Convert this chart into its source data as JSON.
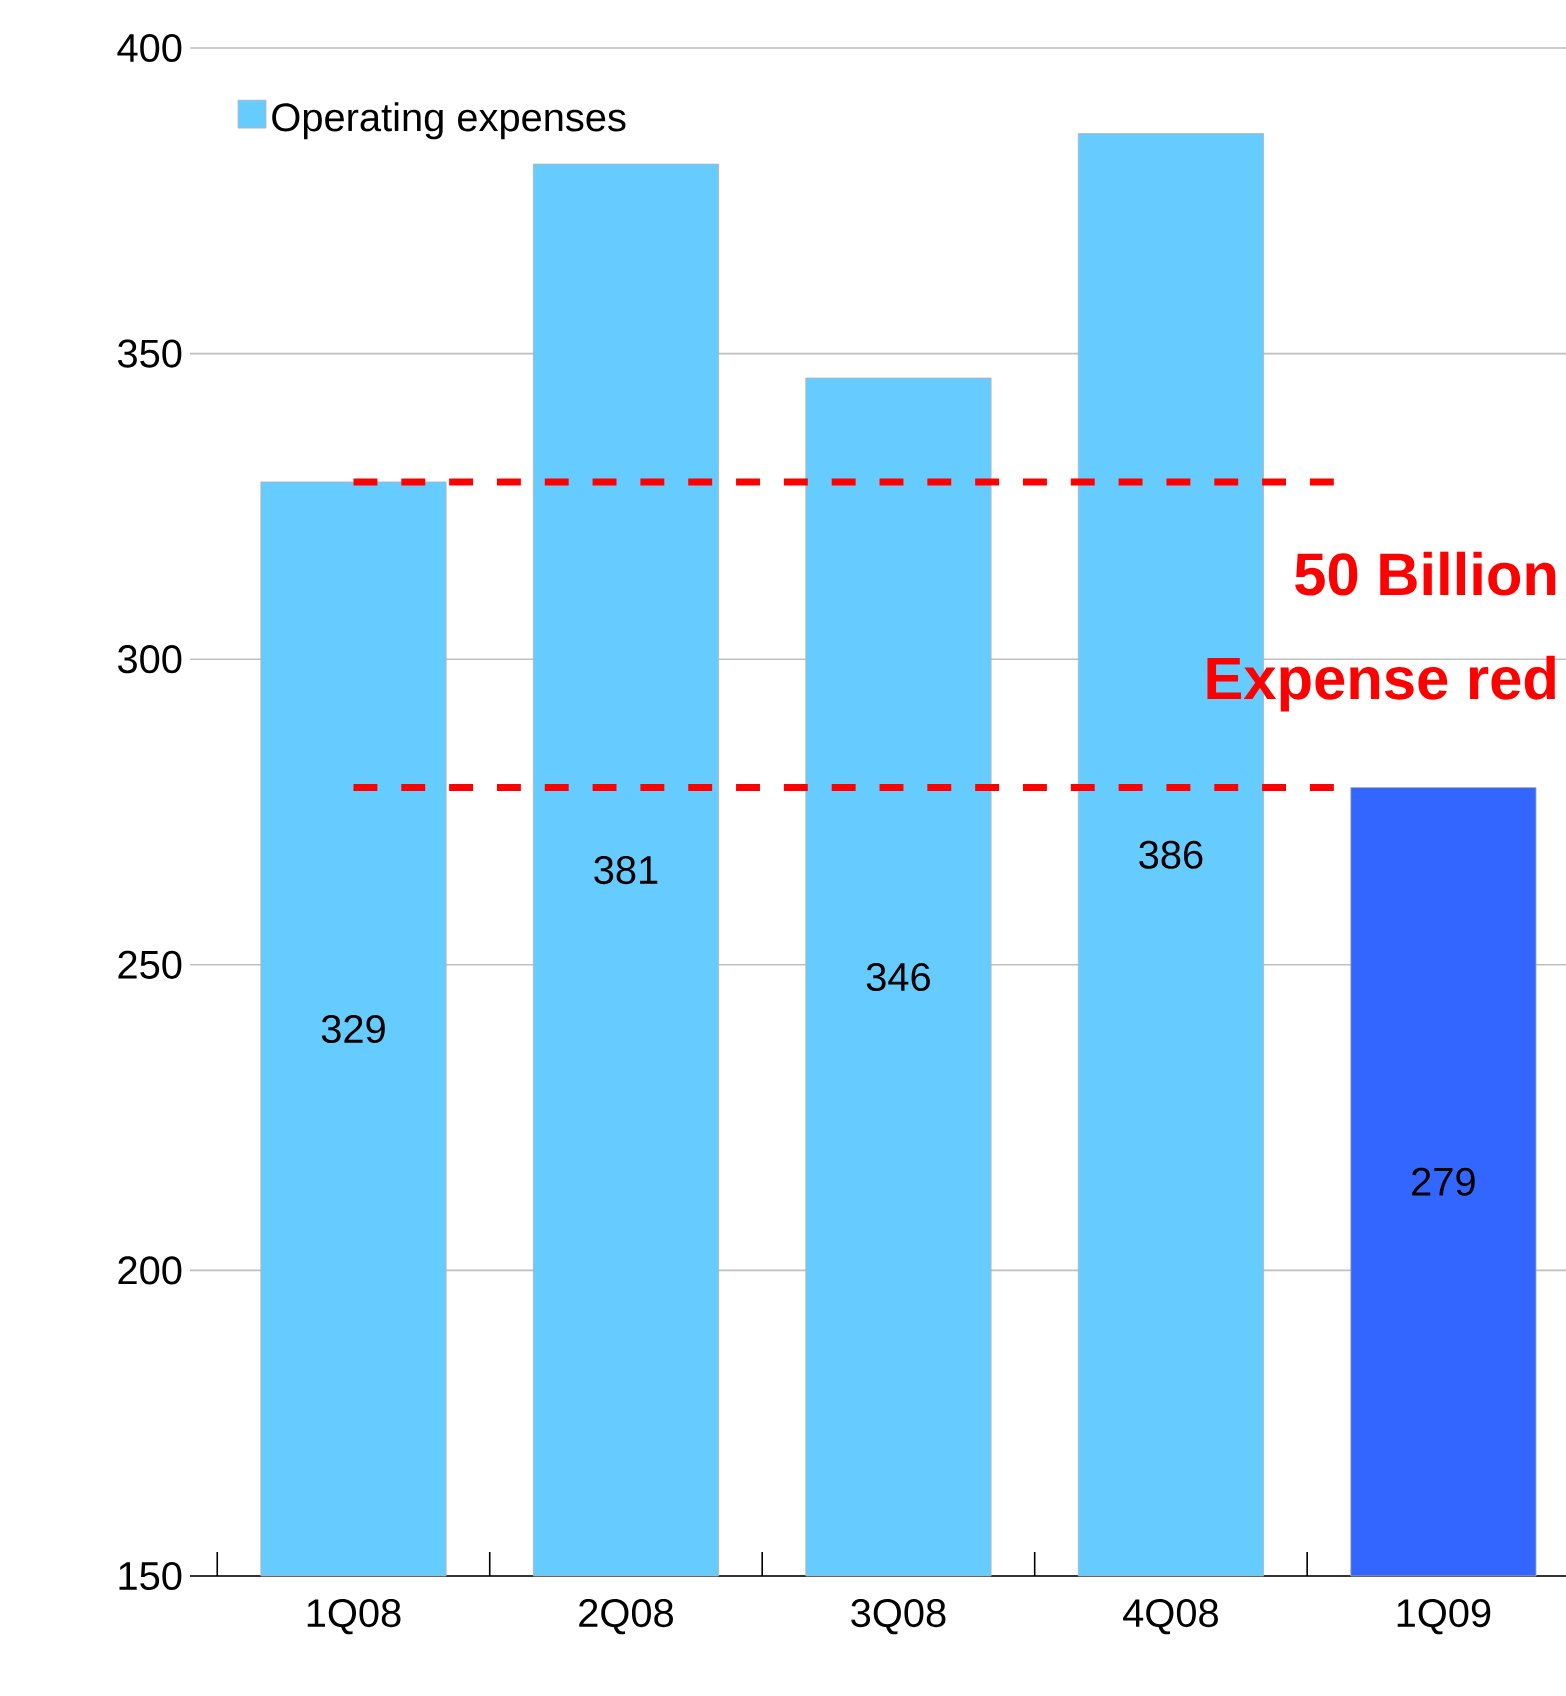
{
  "chart_data": {
    "type": "bar",
    "categories": [
      "1Q08",
      "2Q08",
      "3Q08",
      "4Q08",
      "1Q09"
    ],
    "series": [
      {
        "name": "Operating expenses",
        "color": "#66ccff",
        "colors": [
          "#66ccff",
          "#66ccff",
          "#66ccff",
          "#66ccff",
          "#3366ff"
        ],
        "values": [
          329,
          381,
          346,
          386,
          279
        ]
      }
    ],
    "ylim": [
      150,
      400
    ],
    "yticks": [
      150,
      200,
      250,
      300,
      350,
      400
    ],
    "grid": "y",
    "legend": "top left",
    "data_labels": true,
    "ref_lines": [
      {
        "axis": "y",
        "value": 329,
        "color": "#ff0000",
        "line_style": "dashed"
      },
      {
        "axis": "y",
        "value": 279,
        "color": "#ff0000",
        "line_style": "dashed"
      }
    ],
    "annotations": [
      "50 Billion",
      "Expense red"
    ]
  }
}
